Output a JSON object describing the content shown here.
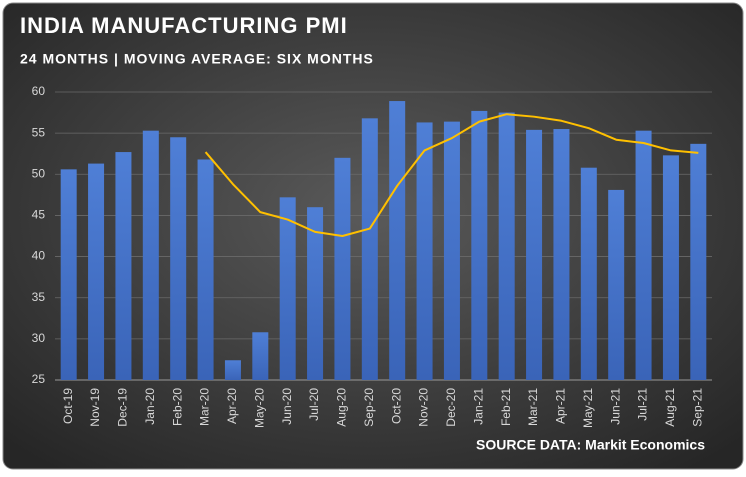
{
  "chart_data": {
    "type": "bar",
    "title": "INDIA MANUFACTURING PMI",
    "subtitle": "24 MONTHS | MOVING AVERAGE: SIX MONTHS",
    "source": "SOURCE DATA: Markit Economics",
    "categories": [
      "Oct-19",
      "Nov-19",
      "Dec-19",
      "Jan-20",
      "Feb-20",
      "Mar-20",
      "Apr-20",
      "May-20",
      "Jun-20",
      "Jul-20",
      "Aug-20",
      "Sep-20",
      "Oct-20",
      "Nov-20",
      "Dec-20",
      "Jan-21",
      "Feb-21",
      "Mar-21",
      "Apr-21",
      "May-21",
      "Jun-21",
      "Jul-21",
      "Aug-21",
      "Sep-21"
    ],
    "series": [
      {
        "type": "bar",
        "color": "#4472c4",
        "values": [
          50.6,
          51.3,
          52.7,
          55.3,
          54.5,
          51.8,
          27.4,
          30.8,
          47.2,
          46.0,
          52.0,
          56.8,
          58.9,
          56.3,
          56.4,
          57.7,
          57.5,
          55.4,
          55.5,
          50.8,
          48.1,
          55.3,
          52.3,
          53.7
        ]
      },
      {
        "type": "line",
        "color": "#ffc000",
        "values": [
          null,
          null,
          null,
          null,
          null,
          52.7,
          48.8,
          45.4,
          44.5,
          43.0,
          42.5,
          43.4,
          48.6,
          52.9,
          54.4,
          56.4,
          57.3,
          57.0,
          56.5,
          55.6,
          54.2,
          53.8,
          52.9,
          52.6
        ]
      }
    ],
    "ylim": [
      25,
      60
    ],
    "yticks": [
      25,
      30,
      35,
      40,
      45,
      50,
      55,
      60
    ],
    "grid": true
  }
}
